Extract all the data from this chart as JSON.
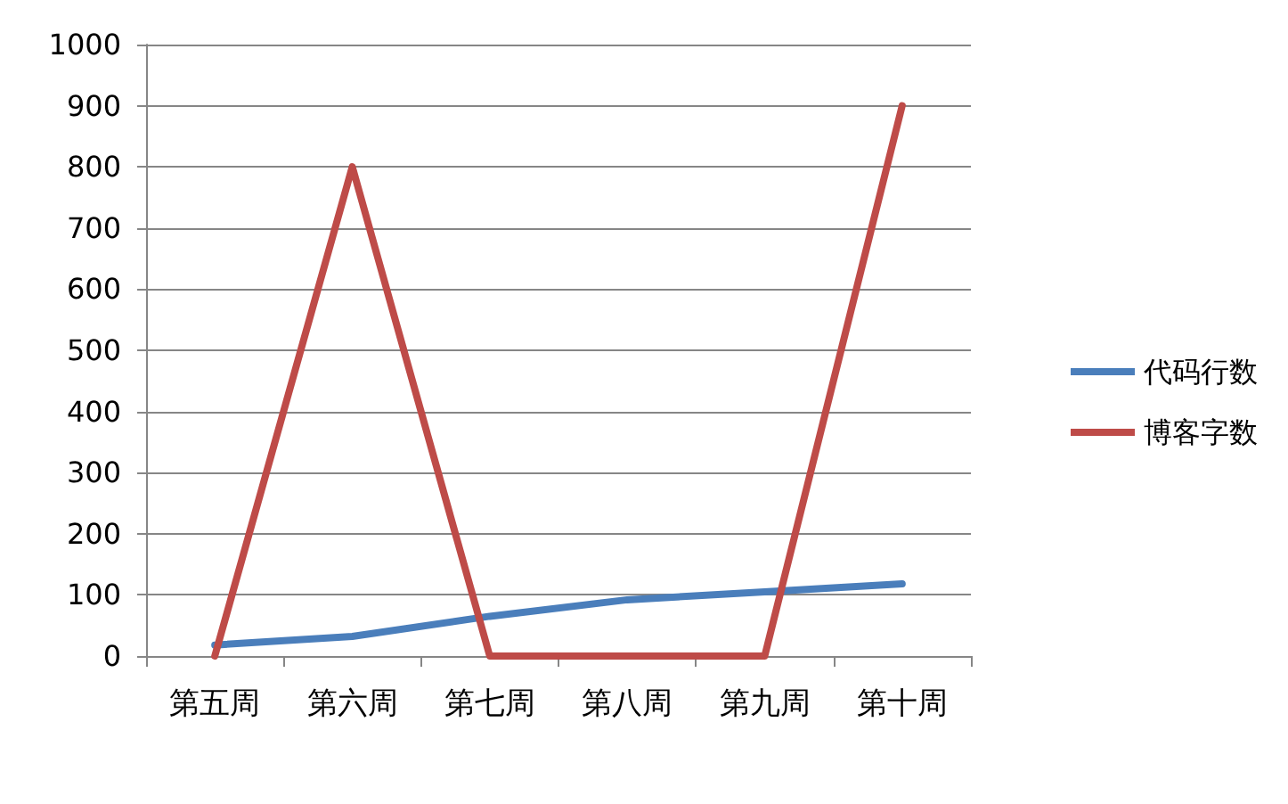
{
  "chart_data": {
    "type": "line",
    "categories": [
      "第五周",
      "第六周",
      "第七周",
      "第八周",
      "第九周",
      "第十周"
    ],
    "series": [
      {
        "name": "代码行数",
        "color": "#4a7ebb",
        "values": [
          18,
          32,
          65,
          92,
          105,
          118
        ]
      },
      {
        "name": "博客字数",
        "color": "#be4b48",
        "values": [
          0,
          800,
          0,
          0,
          0,
          900
        ]
      }
    ],
    "ylim": [
      0,
      1000
    ],
    "yticks": [
      0,
      100,
      200,
      300,
      400,
      500,
      600,
      700,
      800,
      900,
      1000
    ],
    "grid": "y",
    "legend": "right",
    "marker": "none",
    "line_style": "solid"
  }
}
